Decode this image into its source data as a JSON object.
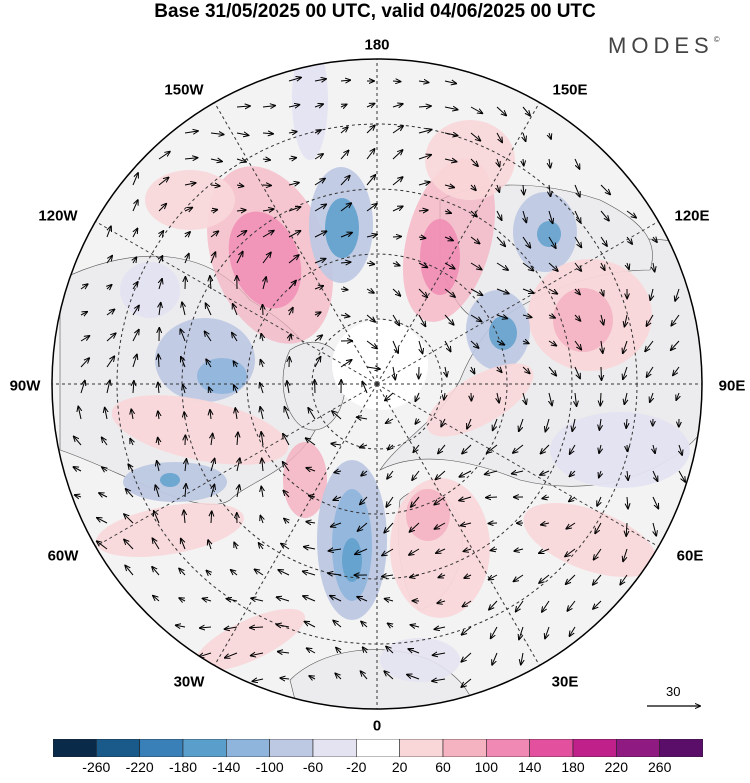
{
  "title": "Base 31/05/2025 00 UTC, valid 04/06/2025 00 UTC",
  "brand": "MODES",
  "brand_mark": "©",
  "longitudes": {
    "top": "180",
    "top_left": "150W",
    "top_right": "150E",
    "upper_left": "120W",
    "upper_right": "120E",
    "left": "90W",
    "right": "90E",
    "lower_left": "60W",
    "lower_right": "60E",
    "bottom_left": "30W",
    "bottom_right": "30E",
    "bottom": "0"
  },
  "vector_scale": {
    "label": "30"
  },
  "colorbar": {
    "colors": [
      "#0a2a4a",
      "#1a5a8a",
      "#3a80b8",
      "#5a9ecb",
      "#8fb5dc",
      "#bdc8e2",
      "#e4e3f1",
      "#ffffff",
      "#f9d7d9",
      "#f5b2c1",
      "#f089b3",
      "#e3509e",
      "#c0208a",
      "#8e1a82",
      "#5a0e6a"
    ],
    "ticks": [
      "-260",
      "-220",
      "-180",
      "-140",
      "-100",
      "-60",
      "-20",
      "20",
      "60",
      "100",
      "140",
      "180",
      "220",
      "260"
    ]
  },
  "colors": {
    "land": "#efefef",
    "ocean": "#ffffff",
    "graticule": "#333333"
  }
}
